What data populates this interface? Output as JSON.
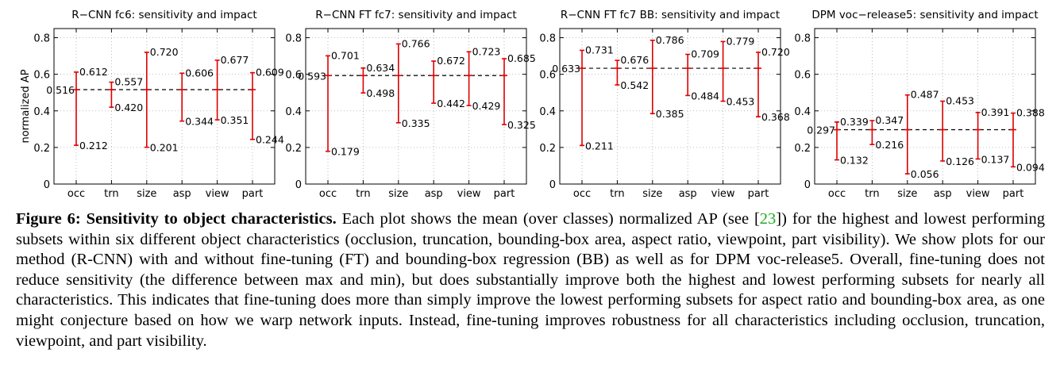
{
  "chart_data": [
    {
      "type": "errorbar",
      "title": "R−CNN fc6: sensitivity and impact",
      "ylabel": "normalized AP",
      "ylim": [
        0,
        0.85
      ],
      "yticks": [
        "0",
        "0.2",
        "0.4",
        "0.6",
        "0.8"
      ],
      "categories": [
        "occ",
        "trn",
        "size",
        "asp",
        "view",
        "part"
      ],
      "mean": 0.516,
      "mean_label": "0.516",
      "max": [
        0.612,
        0.557,
        0.72,
        0.606,
        0.677,
        0.609
      ],
      "min": [
        0.212,
        0.42,
        0.201,
        0.344,
        0.351,
        0.244
      ],
      "max_labels": [
        "0.612",
        "0.557",
        "0.720",
        "0.606",
        "0.677",
        "0.609"
      ],
      "min_labels": [
        "0.212",
        "0.420",
        "0.201",
        "0.344",
        "0.351",
        "0.244"
      ]
    },
    {
      "type": "errorbar",
      "title": "R−CNN FT fc7: sensitivity and impact",
      "ylabel": "",
      "ylim": [
        0,
        0.85
      ],
      "yticks": [
        "0",
        "0.2",
        "0.4",
        "0.6",
        "0.8"
      ],
      "categories": [
        "occ",
        "trn",
        "size",
        "asp",
        "view",
        "part"
      ],
      "mean": 0.593,
      "mean_label": "0.593",
      "max": [
        0.701,
        0.634,
        0.766,
        0.672,
        0.723,
        0.685
      ],
      "min": [
        0.179,
        0.498,
        0.335,
        0.442,
        0.429,
        0.325
      ],
      "max_labels": [
        "0.701",
        "0.634",
        "0.766",
        "0.672",
        "0.723",
        "0.685"
      ],
      "min_labels": [
        "0.179",
        "0.498",
        "0.335",
        "0.442",
        "0.429",
        "0.325"
      ]
    },
    {
      "type": "errorbar",
      "title": "R−CNN FT fc7 BB: sensitivity and impact",
      "ylabel": "",
      "ylim": [
        0,
        0.85
      ],
      "yticks": [
        "0",
        "0.2",
        "0.4",
        "0.6",
        "0.8"
      ],
      "categories": [
        "occ",
        "trn",
        "size",
        "asp",
        "view",
        "part"
      ],
      "mean": 0.633,
      "mean_label": "0.633",
      "max": [
        0.731,
        0.676,
        0.786,
        0.709,
        0.779,
        0.72
      ],
      "min": [
        0.211,
        0.542,
        0.385,
        0.484,
        0.453,
        0.368
      ],
      "max_labels": [
        "0.731",
        "0.676",
        "0.786",
        "0.709",
        "0.779",
        "0.720"
      ],
      "min_labels": [
        "0.211",
        "0.542",
        "0.385",
        "0.484",
        "0.453",
        "0.368"
      ]
    },
    {
      "type": "errorbar",
      "title": "DPM voc−release5: sensitivity and impact",
      "ylabel": "",
      "ylim": [
        0,
        0.85
      ],
      "yticks": [
        "0",
        "0.2",
        "0.4",
        "0.6",
        "0.8"
      ],
      "categories": [
        "occ",
        "trn",
        "size",
        "asp",
        "view",
        "part"
      ],
      "mean": 0.297,
      "mean_label": "0.297",
      "max": [
        0.339,
        0.347,
        0.487,
        0.453,
        0.391,
        0.388
      ],
      "min": [
        0.132,
        0.216,
        0.056,
        0.126,
        0.137,
        0.094
      ],
      "max_labels": [
        "0.339",
        "0.347",
        "0.487",
        "0.453",
        "0.391",
        "0.388"
      ],
      "min_labels": [
        "0.132",
        "0.216",
        "0.056",
        "0.126",
        "0.137",
        "0.094"
      ]
    }
  ],
  "caption": {
    "lead": "Figure 6: Sensitivity to object characteristics.",
    "part1": " Each plot shows the mean (over classes) normalized AP (see [",
    "ref": "23",
    "part2": "]) for the highest and lowest performing subsets within six different object characteristics (occlusion, truncation, bounding-box area, aspect ratio, viewpoint, part visibility). We show plots for our method (R-CNN) with and without fine-tuning (FT) and bounding-box regression (BB) as well as for DPM voc-release5. Overall, fine-tuning does not reduce sensitivity (the difference between max and min), but does substantially improve both the highest and lowest performing subsets for nearly all characteristics. This indicates that fine-tuning does more than simply improve the lowest performing subsets for aspect ratio and bounding-box area, as one might conjecture based on how we warp network inputs. Instead, fine-tuning improves robustness for all characteristics including occlusion, truncation, viewpoint, and part visibility."
  },
  "colors": {
    "errorbar": "#dd0000",
    "mean_line": "#000000",
    "grid": "#aaaaaa",
    "citation": "#22aa22"
  }
}
